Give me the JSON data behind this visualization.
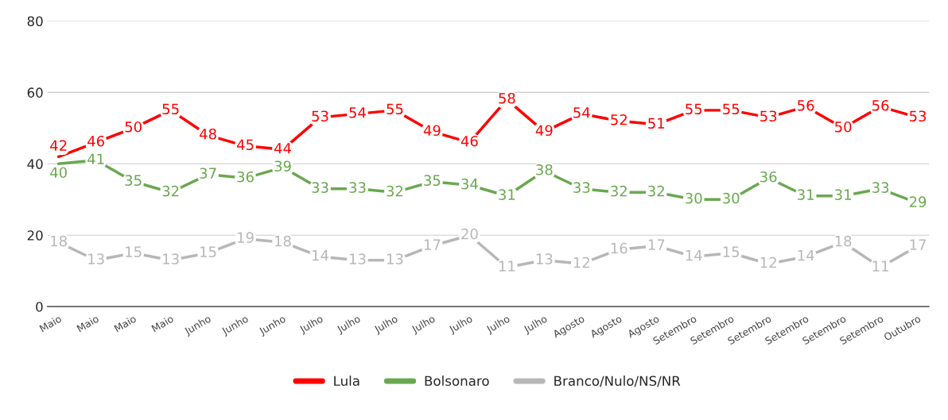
{
  "chart_data": {
    "type": "line",
    "categories": [
      "Maio",
      "Maio",
      "Maio",
      "Maio",
      "Junho",
      "Junho",
      "Junho",
      "Julho",
      "Julho",
      "Julho",
      "Julho",
      "Julho",
      "Julho",
      "Julho",
      "Agosto",
      "Agosto",
      "Agosto",
      "Setembro",
      "Setembro",
      "Setembro",
      "Setembro",
      "Setembro",
      "Setembro",
      "Outubro"
    ],
    "series": [
      {
        "name": "Lula",
        "color": "#ff0000",
        "values": [
          42,
          46,
          50,
          55,
          48,
          45,
          44,
          53,
          54,
          55,
          49,
          46,
          58,
          49,
          54,
          52,
          51,
          55,
          55,
          53,
          56,
          50,
          56,
          53
        ]
      },
      {
        "name": "Bolsonaro",
        "color": "#6aa84f",
        "values": [
          40,
          41,
          35,
          32,
          37,
          36,
          39,
          33,
          33,
          32,
          35,
          34,
          31,
          38,
          33,
          32,
          32,
          30,
          30,
          36,
          31,
          31,
          33,
          29
        ]
      },
      {
        "name": "Branco/Nulo/NS/NR",
        "color": "#b7b7b7",
        "values": [
          18,
          13,
          15,
          13,
          15,
          19,
          18,
          14,
          13,
          13,
          17,
          20,
          11,
          13,
          12,
          16,
          17,
          14,
          15,
          12,
          14,
          18,
          11,
          17
        ]
      }
    ],
    "ylim": [
      0,
      80
    ],
    "yticks": [
      0,
      20,
      40,
      60,
      80
    ],
    "grid": "y",
    "legend": "bottom",
    "data_labels": true,
    "marker": "none",
    "line_style": "solid"
  }
}
